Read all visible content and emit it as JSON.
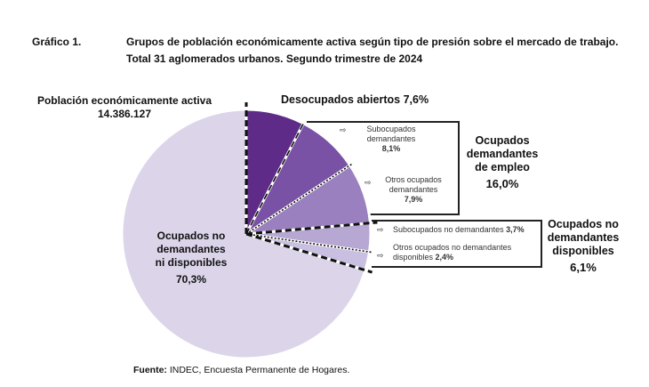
{
  "header": {
    "label": "Gráfico 1.",
    "title_line1": "Grupos de población económicamente activa según tipo de presión sobre el mercado de trabajo.",
    "title_line2": "Total 31 aglomerados urbanos. Segundo trimestre de 2024"
  },
  "chart_data": {
    "type": "pie",
    "total_label": "Población económicamente activa",
    "total_value": "14.386.127",
    "slices": [
      {
        "name": "Desocupados abiertos",
        "value": 7.6,
        "label": "7,6%",
        "color": "#5e2b88"
      },
      {
        "name": "Subocupados demandantes",
        "value": 8.1,
        "label": "8,1%",
        "color": "#7a52a5"
      },
      {
        "name": "Otros ocupados demandantes",
        "value": 7.9,
        "label": "7,9%",
        "color": "#9b80c0"
      },
      {
        "name": "Subocupados no demandantes",
        "value": 3.7,
        "label": "3,7%",
        "color": "#b6a7d3"
      },
      {
        "name": "Otros ocupados no demandantes disponibles",
        "value": 2.4,
        "label": "2,4%",
        "color": "#c9bfe0"
      },
      {
        "name": "Ocupados no demandantes ni disponibles",
        "value": 70.3,
        "label": "70,3%",
        "color": "#dcd5ea"
      }
    ],
    "groups": [
      {
        "name_lines": [
          "Ocupados",
          "demandantes",
          "de empleo"
        ],
        "label": "16,0%"
      },
      {
        "name_lines": [
          "Ocupados no",
          "demandantes",
          "disponibles"
        ],
        "label": "6,1%"
      }
    ]
  },
  "labels": {
    "desocupados": "Desocupados abiertos",
    "subdem1": "Subocupados",
    "subdem2": "demandantes",
    "otrosdem1": "Otros ocupados",
    "otrosdem2": "demandantes",
    "subnodem": "Subocupados no demandantes",
    "otrosnodem1": "Otros ocupados no demandantes",
    "otrosnodem2": "disponibles",
    "ocnodem1": "Ocupados no",
    "ocnodem2": "demandantes",
    "ocnodem3": "ni disponibles"
  },
  "arrow_icon": "⇨",
  "footer": {
    "source_label": "Fuente:",
    "source_text": " INDEC, Encuesta Permanente de Hogares."
  }
}
